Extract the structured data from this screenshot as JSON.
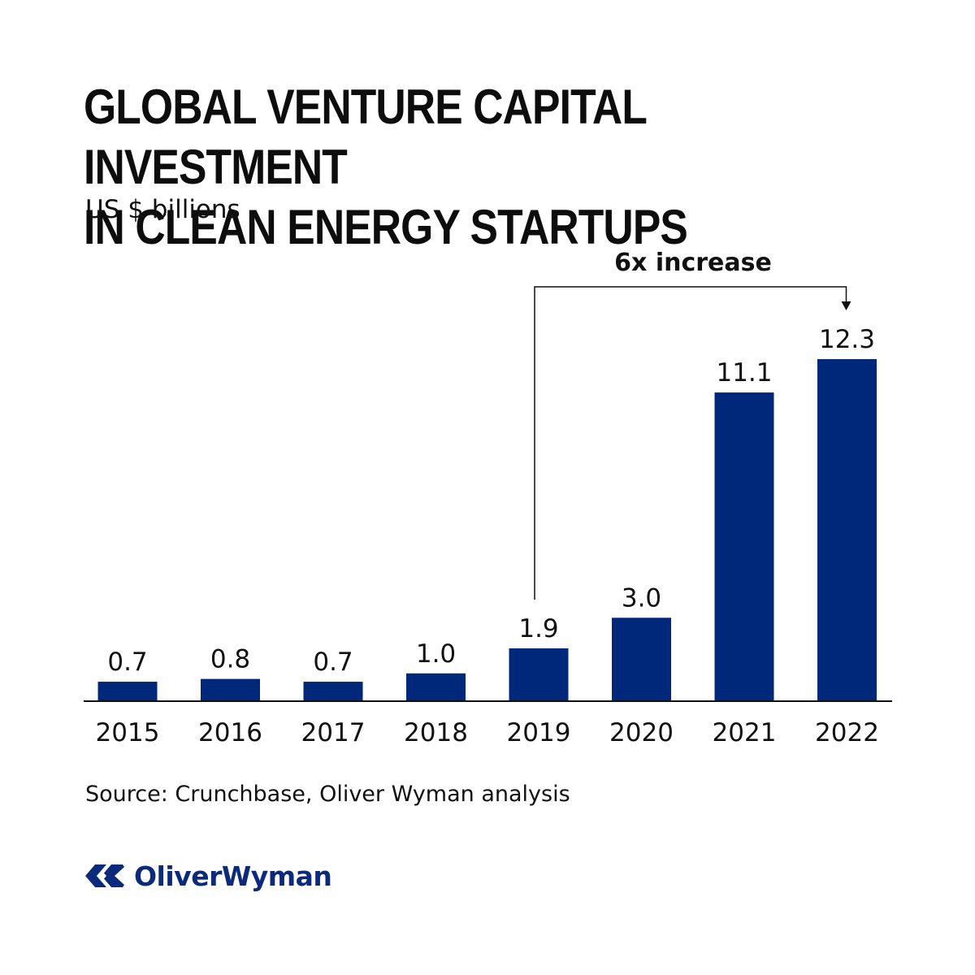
{
  "header": {
    "title_line1": "GLOBAL VENTURE CAPITAL INVESTMENT",
    "title_line2": "IN CLEAN ENERGY STARTUPS",
    "subtitle": "US $ billions"
  },
  "annotation": {
    "label": "6x increase",
    "from": "2019",
    "to": "2022"
  },
  "chart_data": {
    "type": "bar",
    "title": "GLOBAL VENTURE CAPITAL INVESTMENT IN CLEAN ENERGY STARTUPS",
    "subtitle": "US $ billions",
    "categories": [
      "2015",
      "2016",
      "2017",
      "2018",
      "2019",
      "2020",
      "2021",
      "2022"
    ],
    "values": [
      0.7,
      0.8,
      0.7,
      1.0,
      1.9,
      3.0,
      11.1,
      12.3
    ],
    "value_labels": [
      "0.7",
      "0.8",
      "0.7",
      "1.0",
      "1.9",
      "3.0",
      "11.1",
      "12.3"
    ],
    "xlabel": "",
    "ylabel": "",
    "ylim": [
      0,
      12.3
    ],
    "grid": false,
    "bar_color": "#00287a"
  },
  "footer": {
    "source": "Source: Crunchbase, Oliver Wyman analysis",
    "brand": "OliverWyman",
    "brand_color": "#0c2a7b",
    "logo_icon": "oliver-wyman-logo-mark"
  }
}
